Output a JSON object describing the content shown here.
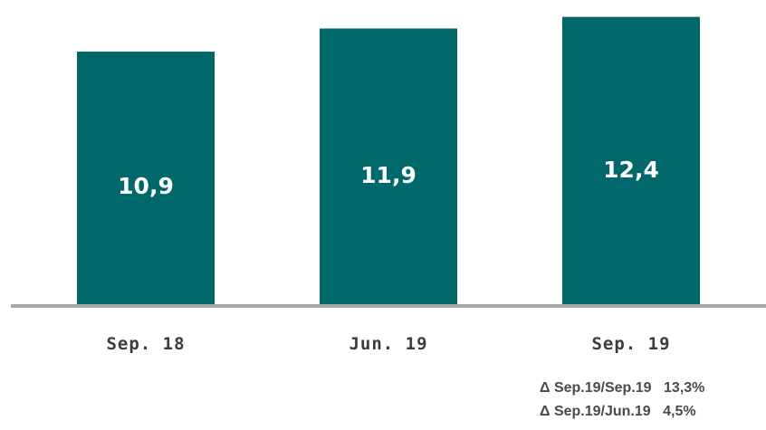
{
  "colors": {
    "bar": "#00676b",
    "axis": "#a6a6a6"
  },
  "chart_data": {
    "type": "bar",
    "categories": [
      "Sep. 18",
      "Jun. 19",
      "Sep. 19"
    ],
    "values": [
      10.9,
      11.9,
      12.4
    ],
    "value_labels": [
      "10,9",
      "11,9",
      "12,4"
    ],
    "title": "",
    "xlabel": "",
    "ylabel": "",
    "ylim": [
      0,
      12.7
    ],
    "grid": false
  },
  "annotations": [
    {
      "label": "Δ Sep.19/Sep.19",
      "value": "13,3%"
    },
    {
      "label": "Δ Sep.19/Jun.19",
      "value": "4,5%"
    }
  ]
}
